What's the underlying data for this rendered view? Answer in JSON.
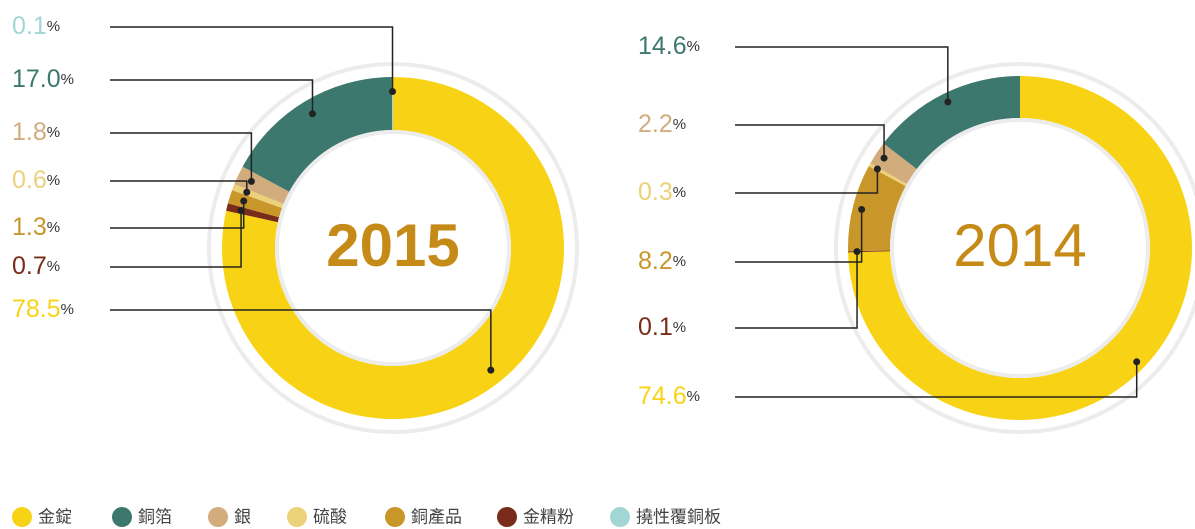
{
  "chart_data": [
    {
      "type": "donut",
      "title": "2015",
      "title_bold": true,
      "categories": [
        "金錠",
        "銅箔",
        "銀",
        "硫酸",
        "銅產品",
        "金精粉",
        "撓性覆銅板"
      ],
      "colors": [
        "#f8d315",
        "#3c786e",
        "#d3ac7d",
        "#ebd27a",
        "#c9962a",
        "#7a2c1a",
        "#a2d6d2"
      ],
      "values": [
        78.5,
        17.0,
        1.8,
        0.6,
        1.3,
        0.7,
        0.1
      ],
      "value_labels": [
        "78.5%",
        "17.0%",
        "1.8%",
        "0.6%",
        "1.3%",
        "0.7%",
        "0.1%"
      ]
    },
    {
      "type": "donut",
      "title": "2014",
      "title_bold": false,
      "categories": [
        "金錠",
        "銅箔",
        "銀",
        "硫酸",
        "銅產品",
        "金精粉",
        "撓性覆銅板"
      ],
      "colors": [
        "#f8d315",
        "#3c786e",
        "#d3ac7d",
        "#ebd27a",
        "#c9962a",
        "#7a2c1a",
        "#a2d6d2"
      ],
      "values": [
        74.6,
        14.6,
        2.2,
        0.3,
        8.2,
        0.1,
        null
      ],
      "value_labels": [
        "74.6%",
        "14.6%",
        "2.2%",
        "0.3%",
        "8.2%",
        "0.1%",
        null
      ]
    }
  ]
}
